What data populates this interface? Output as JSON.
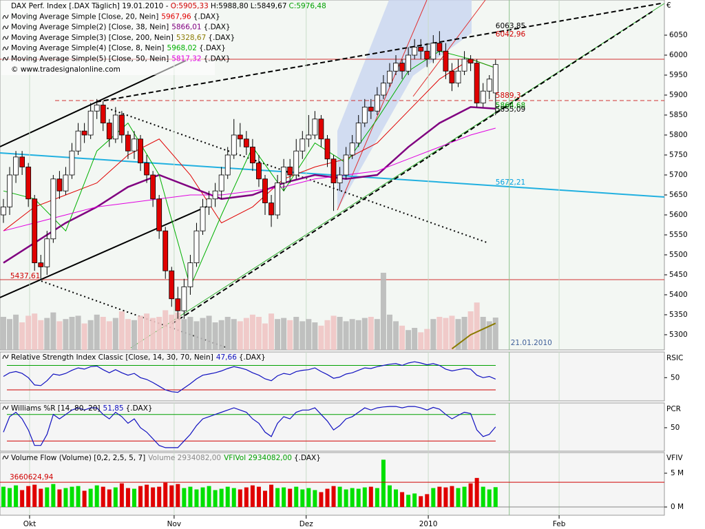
{
  "chart_data": [
    {
      "type": "candlestick",
      "title": "DAX Perf. Index [.DAX Täglich] 19.01.2010 -",
      "ohlc_labels": [
        "O:5905,33",
        "H:5988,80",
        "L:5849,67",
        "C:5976,48"
      ],
      "ohlc_colors": [
        "#d00000",
        "#000000",
        "#000000",
        "#00a000"
      ],
      "open": [
        5600,
        5620,
        5700,
        5745,
        5720,
        5640,
        5480,
        5470,
        5540,
        5690,
        5660,
        5700,
        5760,
        5810,
        5800,
        5860,
        5875,
        5830,
        5790,
        5850,
        5800,
        5760,
        5790,
        5730,
        5700,
        5640,
        5560,
        5460,
        5390,
        5360,
        5420,
        5480,
        5560,
        5620,
        5640,
        5660,
        5700,
        5750,
        5800,
        5790,
        5770,
        5730,
        5690,
        5630,
        5600,
        5680,
        5720,
        5700,
        5760,
        5790,
        5800,
        5840,
        5790,
        5740,
        5680,
        5700,
        5750,
        5780,
        5830,
        5870,
        5860,
        5900,
        5930,
        5960,
        5980,
        5960,
        6000,
        6020,
        6010,
        5990,
        6030,
        6010,
        5960,
        5930,
        5960,
        5990,
        5980,
        5880,
        5910,
        5905.33
      ],
      "high": [
        5640,
        5720,
        5760,
        5760,
        5730,
        5650,
        5500,
        5560,
        5700,
        5710,
        5720,
        5780,
        5830,
        5830,
        5880,
        5890,
        5885,
        5840,
        5870,
        5860,
        5810,
        5810,
        5800,
        5750,
        5710,
        5650,
        5570,
        5470,
        5420,
        5440,
        5500,
        5580,
        5640,
        5660,
        5680,
        5720,
        5770,
        5840,
        5830,
        5810,
        5790,
        5750,
        5700,
        5650,
        5700,
        5740,
        5740,
        5790,
        5810,
        5850,
        5860,
        5850,
        5800,
        5750,
        5720,
        5770,
        5800,
        5850,
        5890,
        5890,
        5920,
        5950,
        5980,
        6000,
        5990,
        6020,
        6040,
        6040,
        6030,
        6050,
        6060,
        6030,
        5980,
        5990,
        6010,
        6000,
        5990,
        5930,
        5950,
        5988.8
      ],
      "low": [
        5580,
        5600,
        5680,
        5700,
        5620,
        5460,
        5440,
        5450,
        5530,
        5640,
        5650,
        5690,
        5750,
        5780,
        5790,
        5840,
        5810,
        5770,
        5780,
        5780,
        5740,
        5740,
        5710,
        5680,
        5620,
        5540,
        5440,
        5370,
        5340,
        5340,
        5400,
        5470,
        5550,
        5600,
        5620,
        5640,
        5690,
        5740,
        5770,
        5750,
        5710,
        5670,
        5600,
        5570,
        5590,
        5660,
        5680,
        5690,
        5740,
        5770,
        5790,
        5770,
        5720,
        5610,
        5660,
        5690,
        5740,
        5770,
        5820,
        5840,
        5850,
        5890,
        5920,
        5950,
        5940,
        5950,
        5990,
        5990,
        5970,
        5980,
        6000,
        5940,
        5910,
        5920,
        5950,
        5960,
        5870,
        5870,
        5890,
        5849.67
      ],
      "close": [
        5620,
        5700,
        5745,
        5720,
        5640,
        5480,
        5470,
        5540,
        5690,
        5660,
        5700,
        5760,
        5810,
        5800,
        5860,
        5875,
        5830,
        5790,
        5850,
        5800,
        5760,
        5790,
        5730,
        5700,
        5640,
        5560,
        5460,
        5390,
        5360,
        5420,
        5480,
        5560,
        5620,
        5640,
        5660,
        5700,
        5750,
        5800,
        5790,
        5770,
        5730,
        5690,
        5630,
        5600,
        5680,
        5720,
        5700,
        5760,
        5790,
        5800,
        5840,
        5790,
        5740,
        5680,
        5700,
        5750,
        5780,
        5830,
        5870,
        5860,
        5900,
        5930,
        5960,
        5980,
        5960,
        6000,
        6020,
        6010,
        5990,
        6030,
        6010,
        5960,
        5930,
        5960,
        5990,
        5980,
        5880,
        5910,
        5940,
        5976.48
      ],
      "up_color": "#ffffff",
      "down_color": "#e00000",
      "volume_colors": [
        "#b9b9b9",
        "#efc4c4"
      ],
      "suffix": "{.DAX}",
      "watermark": "© www.tradesignalonline.com",
      "currency": "€",
      "series": [
        {
          "name": "Moving Average Simple [Close, 20, Nein]",
          "color": "#e00000",
          "line_width": 1,
          "value_label": "5967,96",
          "x": [
            0,
            5,
            10,
            15,
            20,
            25,
            30,
            35,
            40,
            45,
            50,
            55,
            60,
            65,
            70,
            75,
            79
          ],
          "values": [
            5560,
            5620,
            5650,
            5680,
            5750,
            5790,
            5700,
            5580,
            5620,
            5690,
            5720,
            5740,
            5780,
            5860,
            5940,
            5990,
            5967.96
          ]
        },
        {
          "name": "Moving Average Simple(2) [Close, 38, Nein]",
          "color": "#800080",
          "line_width": 2.5,
          "value_label": "5866,01",
          "x": [
            0,
            5,
            10,
            15,
            20,
            25,
            30,
            35,
            40,
            45,
            50,
            55,
            60,
            65,
            70,
            75,
            79
          ],
          "values": [
            5480,
            5530,
            5580,
            5620,
            5670,
            5700,
            5670,
            5640,
            5650,
            5680,
            5700,
            5690,
            5700,
            5770,
            5830,
            5870,
            5866.01
          ]
        },
        {
          "name": "Moving Average Simple(3) [Close, 200, Nein]",
          "color": "#8a7a00",
          "line_width": 2,
          "value_label": "5328,67",
          "x": [
            72,
            75,
            79
          ],
          "values": [
            5265,
            5300,
            5328.67
          ]
        },
        {
          "name": "Moving Average Simple(4) [Close, 8, Nein]",
          "color": "#00b000",
          "line_width": 1,
          "value_label": "5968,02",
          "x": [
            0,
            5,
            10,
            15,
            20,
            25,
            30,
            35,
            40,
            45,
            50,
            55,
            60,
            65,
            70,
            75,
            79
          ],
          "values": [
            5660,
            5640,
            5560,
            5760,
            5830,
            5700,
            5420,
            5600,
            5770,
            5660,
            5780,
            5730,
            5840,
            5960,
            6010,
            5990,
            5968.02
          ]
        },
        {
          "name": "Moving Average Simple(5) [Close, 50, Nein]",
          "color": "#e000e0",
          "line_width": 1,
          "value_label": "5817,32",
          "x": [
            0,
            5,
            10,
            15,
            20,
            25,
            30,
            35,
            40,
            45,
            50,
            55,
            60,
            65,
            70,
            75,
            79
          ],
          "values": [
            5560,
            5580,
            5600,
            5620,
            5630,
            5640,
            5650,
            5650,
            5660,
            5670,
            5690,
            5700,
            5710,
            5740,
            5770,
            5800,
            5817.32
          ]
        }
      ],
      "annotations": [
        {
          "label": "6063,85",
          "value": 6063.85,
          "x": 79,
          "color": "#000000"
        },
        {
          "label": "6042,96",
          "value": 6042.96,
          "x": 79,
          "color": "#d00000"
        },
        {
          "label": "5889,3",
          "value": 5889.3,
          "x": 79,
          "color": "#d00000"
        },
        {
          "label": "5864,68",
          "value": 5864.68,
          "x": 79,
          "color": "#00a000"
        },
        {
          "label": "5855,09",
          "value": 5855.09,
          "x": 79,
          "color": "#000000"
        },
        {
          "label": "5672,21",
          "value": 5672.21,
          "x": 79,
          "color": "#00a0e0"
        },
        {
          "label": "5437,61",
          "value": 5437.61,
          "x": 1.1,
          "color": "#d00000"
        }
      ],
      "date_marker": {
        "label": "21.01.2010",
        "x": 81.2
      },
      "xlim": [
        -0.55,
        106.1
      ],
      "ylim": [
        5262,
        6138
      ],
      "yticks": [
        5300,
        5350,
        5400,
        5450,
        5500,
        5550,
        5600,
        5650,
        5700,
        5750,
        5800,
        5850,
        5900,
        5950,
        6000,
        6050
      ]
    },
    {
      "type": "line",
      "title": "Relative Strength Index Classic [Close, 14, 30, 70, Nein]",
      "value_label": "47,66",
      "suffix": "{.DAX}",
      "axis_label": "RSIC",
      "color": "#1010c0",
      "values": [
        52,
        58,
        60,
        57,
        50,
        38,
        37,
        45,
        56,
        54,
        57,
        62,
        66,
        64,
        68,
        69,
        63,
        58,
        63,
        58,
        54,
        57,
        50,
        47,
        42,
        36,
        30,
        27,
        26,
        33,
        40,
        48,
        54,
        56,
        58,
        61,
        65,
        68,
        66,
        63,
        58,
        54,
        48,
        45,
        53,
        57,
        55,
        60,
        62,
        63,
        66,
        60,
        55,
        49,
        51,
        56,
        58,
        62,
        66,
        65,
        68,
        70,
        72,
        73,
        70,
        74,
        76,
        74,
        71,
        73,
        70,
        64,
        61,
        63,
        65,
        64,
        54,
        50,
        52,
        47.66
      ],
      "levels": [
        {
          "value": 70,
          "color": "#00a000"
        },
        {
          "value": 30,
          "color": "#d00000"
        }
      ],
      "ylim": [
        12,
        92
      ],
      "yticks": [
        50
      ]
    },
    {
      "type": "line",
      "title": "Williams %R [14, 80, 20]",
      "value_label": "51,85",
      "suffix": "{.DAX}",
      "axis_label": "PCR",
      "color": "#1010c0",
      "values": [
        40,
        75,
        85,
        70,
        45,
        10,
        10,
        35,
        80,
        70,
        80,
        90,
        95,
        90,
        95,
        95,
        80,
        70,
        85,
        75,
        60,
        70,
        50,
        40,
        25,
        10,
        5,
        5,
        5,
        20,
        35,
        55,
        70,
        75,
        80,
        85,
        90,
        95,
        90,
        85,
        70,
        60,
        40,
        30,
        60,
        75,
        70,
        85,
        90,
        90,
        95,
        80,
        65,
        45,
        55,
        70,
        75,
        85,
        95,
        90,
        95,
        97,
        98,
        98,
        95,
        98,
        98,
        95,
        90,
        96,
        92,
        80,
        70,
        78,
        85,
        82,
        45,
        30,
        35,
        51.85
      ],
      "levels": [
        {
          "value": 80,
          "color": "#00a000"
        },
        {
          "value": 20,
          "color": "#d00000"
        }
      ],
      "ylim": [
        -3,
        106
      ],
      "yticks": [
        50
      ]
    },
    {
      "type": "bar",
      "title": "Volume Flow (Volume) [0,2, 2,5, 5, 7]",
      "volume_label": "Volume 2934082,00",
      "vfi_label": "VFIVol 2934082,00",
      "suffix": "{.DAX}",
      "axis_label": "VFIV",
      "up_color": "#00e000",
      "down_color": "#e00000",
      "values": [
        3.0,
        2.8,
        3.2,
        2.5,
        3.1,
        3.3,
        2.7,
        2.9,
        3.4,
        2.6,
        2.8,
        3.0,
        3.1,
        2.4,
        2.7,
        3.2,
        3.0,
        2.6,
        2.9,
        3.5,
        2.8,
        2.7,
        3.1,
        3.3,
        2.9,
        3.0,
        3.6,
        3.2,
        3.4,
        2.8,
        3.0,
        2.6,
        2.9,
        3.1,
        2.5,
        2.7,
        3.0,
        2.8,
        2.6,
        2.9,
        3.2,
        3.0,
        2.4,
        3.3,
        2.8,
        2.9,
        2.7,
        3.0,
        2.6,
        2.8,
        2.5,
        2.2,
        2.7,
        3.1,
        3.0,
        2.6,
        2.8,
        2.7,
        2.9,
        3.0,
        2.8,
        7.0,
        3.2,
        2.6,
        2.2,
        1.8,
        2.0,
        1.6,
        1.9,
        2.8,
        3.0,
        2.9,
        3.1,
        2.8,
        3.0,
        3.5,
        4.3,
        3.0,
        2.6,
        2.934082
      ],
      "threshold": {
        "value": 3.66062494,
        "label": "3660624,94",
        "color": "#d00000"
      },
      "ylim": [
        -1.22,
        8.06
      ],
      "yticks": [
        {
          "value": 0,
          "label": "0 M"
        },
        {
          "value": 5,
          "label": "5 M"
        }
      ],
      "xticks": [
        {
          "value": 4.2,
          "label": "Okt"
        },
        {
          "value": 27.4,
          "label": "Nov"
        },
        {
          "value": 48.6,
          "label": "Dez"
        },
        {
          "value": 68.2,
          "label": "2010"
        },
        {
          "value": 89.2,
          "label": "Feb"
        }
      ]
    }
  ]
}
